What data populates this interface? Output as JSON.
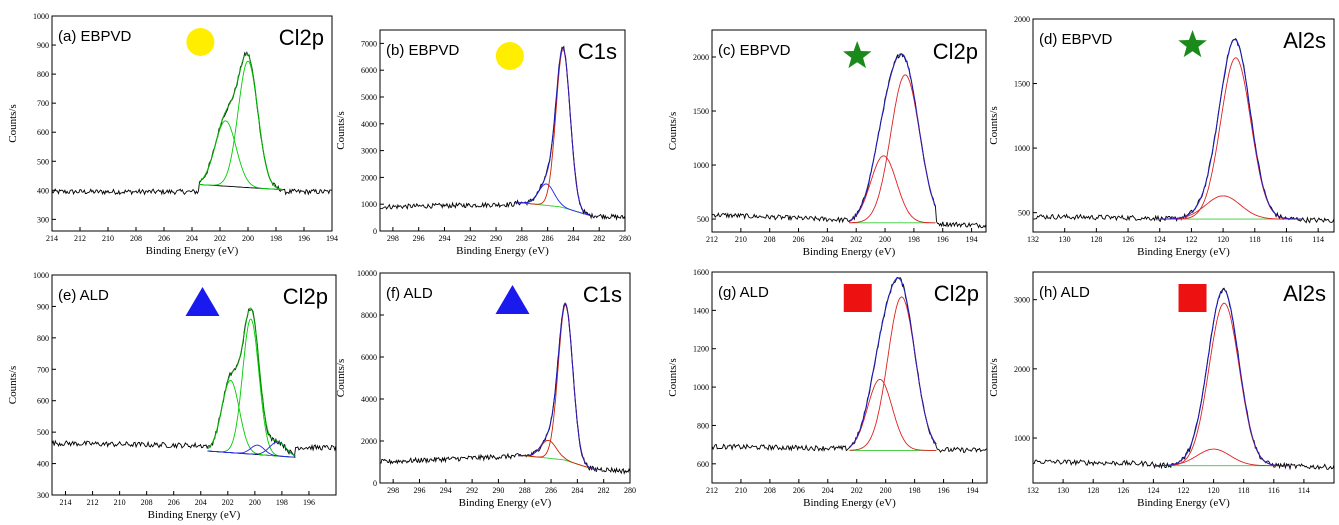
{
  "chart_data": [
    {
      "type": "line",
      "panel": "(a) EBPVD",
      "peak": "Cl2p",
      "marker": "circle",
      "marker_color": "#ffee00",
      "xlabel": "Binding Energy (eV)",
      "ylabel": "Counts/s",
      "xlim": [
        214,
        194
      ],
      "ylim": [
        260,
        1000
      ],
      "xticks": [
        214,
        212,
        210,
        208,
        206,
        204,
        202,
        200,
        198,
        196,
        194
      ],
      "yticks": [
        300,
        400,
        500,
        600,
        700,
        800,
        900,
        1000
      ],
      "baseline": {
        "x": [
          214,
          194
        ],
        "y": [
          395,
          395
        ]
      },
      "background": {
        "x": [
          203.5,
          197.5
        ],
        "y": [
          420,
          402
        ]
      },
      "peaks": [
        {
          "name": "component-1",
          "color": "#00cc00",
          "center": 201.6,
          "height": 225,
          "width": 0.75
        },
        {
          "name": "component-2",
          "color": "#00cc00",
          "center": 200.0,
          "height": 435,
          "width": 0.7
        }
      ],
      "envelope_range": [
        203.5,
        197.5
      ]
    },
    {
      "type": "line",
      "panel": "(b) EBPVD",
      "peak": "C1s",
      "marker": "circle",
      "marker_color": "#ffee00",
      "xlabel": "Binding Energy (eV)",
      "ylabel": "Counts/s",
      "xlim": [
        299,
        280
      ],
      "ylim": [
        0,
        7500
      ],
      "xticks": [
        298,
        296,
        294,
        292,
        290,
        288,
        286,
        284,
        282,
        280
      ],
      "yticks": [
        0,
        1000,
        2000,
        3000,
        4000,
        5000,
        6000,
        7000
      ],
      "baseline": {
        "x": [
          299,
          288,
          283,
          280
        ],
        "y": [
          900,
          1000,
          600,
          500
        ]
      },
      "background": {
        "x": [
          288,
          285,
          282.5
        ],
        "y": [
          1050,
          900,
          550
        ]
      },
      "peaks": [
        {
          "name": "component-1",
          "color": "#2222ee",
          "center": 286.1,
          "height": 800,
          "width": 0.6
        },
        {
          "name": "component-2",
          "color": "#cc2200",
          "center": 284.8,
          "height": 5900,
          "width": 0.55
        }
      ],
      "envelope_range": [
        288.5,
        282.5
      ]
    },
    {
      "type": "line",
      "panel": "(c) EBPVD",
      "peak": "Cl2p",
      "marker": "star",
      "marker_color": "#1a8a1a",
      "xlabel": "Binding Energy (eV)",
      "ylabel": "Counts/s",
      "xlim": [
        212,
        193
      ],
      "ylim": [
        380,
        2250
      ],
      "xticks": [
        212,
        210,
        208,
        206,
        204,
        202,
        200,
        198,
        196,
        194
      ],
      "yticks": [
        500,
        1000,
        1500,
        2000
      ],
      "baseline": {
        "x": [
          212,
          193
        ],
        "y": [
          540,
          440
        ]
      },
      "background": {
        "x": [
          202.5,
          196.5
        ],
        "y": [
          465,
          465
        ]
      },
      "peaks": [
        {
          "name": "component-1",
          "color": "#dd2222",
          "center": 200.1,
          "height": 620,
          "width": 0.9
        },
        {
          "name": "component-2",
          "color": "#dd2222",
          "center": 198.6,
          "height": 1370,
          "width": 1.0
        }
      ],
      "envelope_range": [
        202.5,
        196.5
      ]
    },
    {
      "type": "line",
      "panel": "(d) EBPVD",
      "peak": "Al2s",
      "marker": "star",
      "marker_color": "#1a8a1a",
      "xlabel": "Binding Energy (eV)",
      "ylabel": "Counts/s",
      "xlim": [
        132,
        113
      ],
      "ylim": [
        350,
        2000
      ],
      "xticks": [
        132,
        130,
        128,
        126,
        124,
        122,
        120,
        118,
        116,
        114
      ],
      "yticks": [
        500,
        1000,
        1500,
        2000
      ],
      "baseline": {
        "x": [
          132,
          113
        ],
        "y": [
          470,
          440
        ]
      },
      "background": {
        "x": [
          124,
          115
        ],
        "y": [
          450,
          450
        ]
      },
      "peaks": [
        {
          "name": "component-1",
          "color": "#dd2222",
          "center": 120.0,
          "height": 180,
          "width": 1.1
        },
        {
          "name": "component-2",
          "color": "#dd2222",
          "center": 119.2,
          "height": 1250,
          "width": 0.95
        }
      ],
      "envelope_range": [
        124,
        115
      ]
    },
    {
      "type": "line",
      "panel": "(e) ALD",
      "peak": "Cl2p",
      "marker": "triangle",
      "marker_color": "#1a1aee",
      "xlabel": "Binding Energy (eV)",
      "ylabel": "Counts/s",
      "xlim": [
        215,
        194
      ],
      "ylim": [
        300,
        1000
      ],
      "xticks": [
        214,
        212,
        210,
        208,
        206,
        204,
        202,
        200,
        198,
        196
      ],
      "yticks": [
        300,
        400,
        500,
        600,
        700,
        800,
        900,
        1000
      ],
      "baseline": {
        "x": [
          215,
          194
        ],
        "y": [
          465,
          450
        ]
      },
      "background": {
        "x": [
          203.5,
          197
        ],
        "y": [
          440,
          420
        ]
      },
      "peaks": [
        {
          "name": "component-1",
          "color": "#00cc00",
          "center": 201.8,
          "height": 230,
          "width": 0.65
        },
        {
          "name": "component-2",
          "color": "#00cc00",
          "center": 200.3,
          "height": 430,
          "width": 0.6
        },
        {
          "name": "component-3",
          "color": "#2222ee",
          "center": 199.8,
          "height": 30,
          "width": 0.5
        },
        {
          "name": "component-4",
          "color": "#2222ee",
          "center": 198.3,
          "height": 45,
          "width": 0.6
        }
      ],
      "envelope_range": [
        203.5,
        197
      ]
    },
    {
      "type": "line",
      "panel": "(f) ALD",
      "peak": "C1s",
      "marker": "triangle",
      "marker_color": "#1a1aee",
      "xlabel": "Binding Energy (eV)",
      "ylabel": "Counts/s",
      "xlim": [
        299,
        280
      ],
      "ylim": [
        0,
        10000
      ],
      "xticks": [
        298,
        296,
        294,
        292,
        290,
        288,
        286,
        284,
        282,
        280
      ],
      "yticks": [
        0,
        2000,
        4000,
        6000,
        8000,
        10000
      ],
      "baseline": {
        "x": [
          299,
          288,
          283,
          280
        ],
        "y": [
          1000,
          1300,
          700,
          550
        ]
      },
      "background": {
        "x": [
          288,
          285,
          282.5
        ],
        "y": [
          1300,
          1100,
          600
        ]
      },
      "peaks": [
        {
          "name": "component-1",
          "color": "#cc2200",
          "center": 286.2,
          "height": 850,
          "width": 0.6
        },
        {
          "name": "component-2",
          "color": "#cc2200",
          "center": 284.9,
          "height": 7400,
          "width": 0.55
        }
      ],
      "envelope_range": [
        288.5,
        282.5
      ]
    },
    {
      "type": "line",
      "panel": "(g) ALD",
      "peak": "Cl2p",
      "marker": "square",
      "marker_color": "#ee1111",
      "xlabel": "Binding Energy (eV)",
      "ylabel": "Counts/s",
      "xlim": [
        212,
        193
      ],
      "ylim": [
        500,
        1600
      ],
      "xticks": [
        212,
        210,
        208,
        206,
        204,
        202,
        200,
        198,
        196,
        194
      ],
      "yticks": [
        600,
        800,
        1000,
        1200,
        1400,
        1600
      ],
      "baseline": {
        "x": [
          212,
          193
        ],
        "y": [
          690,
          670
        ]
      },
      "background": {
        "x": [
          202.5,
          196.5
        ],
        "y": [
          670,
          670
        ]
      },
      "peaks": [
        {
          "name": "component-1",
          "color": "#dd2222",
          "center": 200.4,
          "height": 370,
          "width": 0.85
        },
        {
          "name": "component-2",
          "color": "#dd2222",
          "center": 198.9,
          "height": 800,
          "width": 0.95
        }
      ],
      "envelope_range": [
        202.5,
        196.5
      ]
    },
    {
      "type": "line",
      "panel": "(h) ALD",
      "peak": "Al2s",
      "marker": "square",
      "marker_color": "#ee1111",
      "xlabel": "Binding Energy (eV)",
      "ylabel": "Counts/s",
      "xlim": [
        132,
        112
      ],
      "ylim": [
        350,
        3400
      ],
      "xticks": [
        132,
        130,
        128,
        126,
        124,
        122,
        120,
        118,
        116,
        114
      ],
      "yticks": [
        1000,
        2000,
        3000
      ],
      "baseline": {
        "x": [
          132,
          112
        ],
        "y": [
          660,
          580
        ]
      },
      "background": {
        "x": [
          124,
          115
        ],
        "y": [
          600,
          600
        ]
      },
      "peaks": [
        {
          "name": "component-1",
          "color": "#dd2222",
          "center": 120.0,
          "height": 240,
          "width": 1.1
        },
        {
          "name": "component-2",
          "color": "#dd2222",
          "center": 119.3,
          "height": 2350,
          "width": 1.0
        }
      ],
      "envelope_range": [
        124,
        115
      ]
    }
  ]
}
